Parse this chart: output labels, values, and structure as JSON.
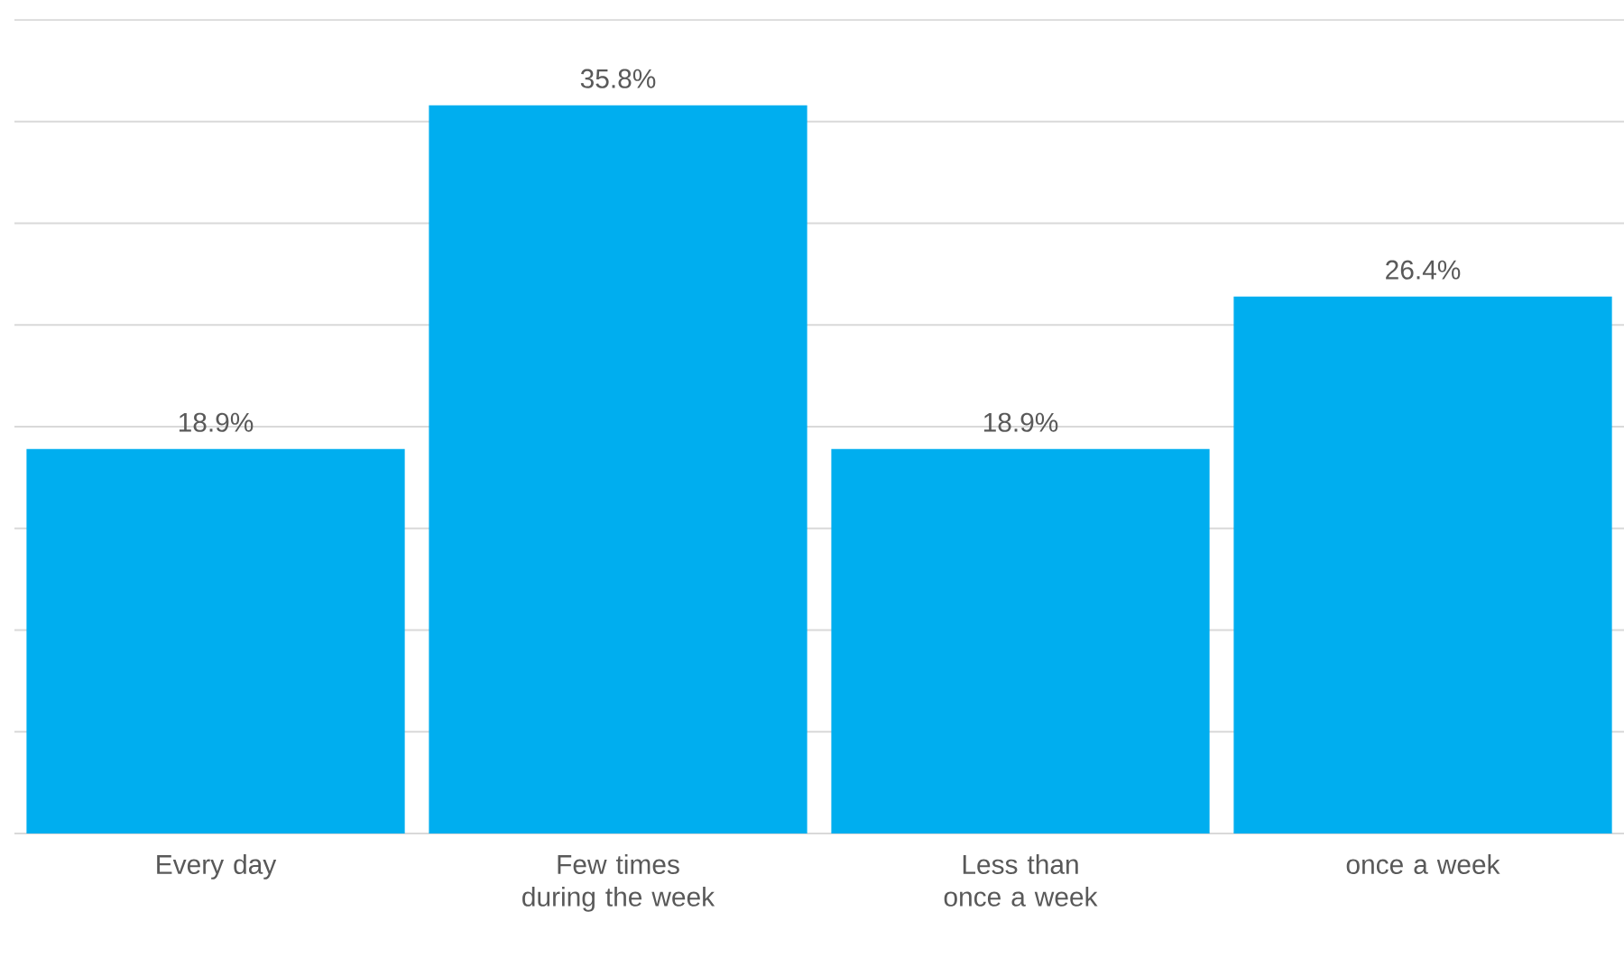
{
  "chart_data": {
    "type": "bar",
    "categories": [
      "Every day",
      "Few times during the week",
      "Less than once a week",
      "once a week"
    ],
    "values": [
      18.9,
      35.8,
      18.9,
      26.4
    ],
    "value_labels": [
      "18.9%",
      "35.8%",
      "18.9%",
      "26.4%"
    ],
    "color": "#00aeef",
    "grid": "y",
    "tick_labels": "x"
  }
}
